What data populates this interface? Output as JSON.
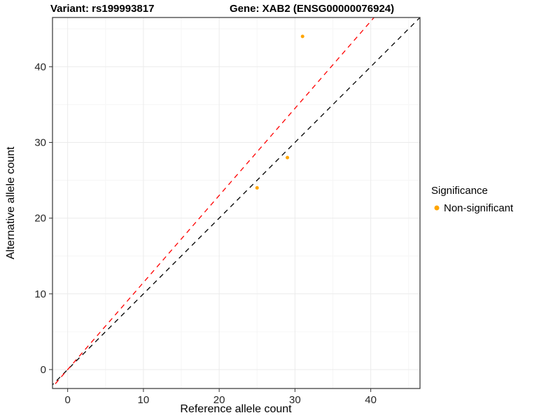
{
  "titles": {
    "variant": "Variant: rs199993817",
    "gene": "Gene: XAB2 (ENSG00000076924)"
  },
  "chart_data": {
    "type": "scatter",
    "title": "Variant: rs199993817 — Gene: XAB2 (ENSG00000076924)",
    "xlabel": "Reference allele count",
    "ylabel": "Alternative allele count",
    "xlim": [
      -2,
      46.5
    ],
    "ylim": [
      -2.5,
      46.5
    ],
    "x_ticks": [
      0,
      10,
      20,
      30,
      40
    ],
    "y_ticks": [
      0,
      10,
      20,
      30,
      40
    ],
    "minor_ticks": [
      5,
      15,
      25,
      35,
      45
    ],
    "grid": true,
    "point_color": "#FFA500",
    "point_radius": 2.5,
    "points": [
      {
        "x": 25,
        "y": 24,
        "significance": "Non-significant"
      },
      {
        "x": 29,
        "y": 28,
        "significance": "Non-significant"
      },
      {
        "x": 31,
        "y": 44,
        "significance": "Non-significant"
      }
    ],
    "lines": [
      {
        "name": "identity",
        "slope": 1,
        "intercept": 0,
        "color": "#000000",
        "style": "dashed"
      },
      {
        "name": "expected-ratio",
        "slope": 1.15,
        "intercept": 0,
        "color": "#FF0000",
        "style": "dashed"
      }
    ],
    "legend": {
      "position": "right",
      "title": "Significance",
      "entries": [
        {
          "label": "Non-significant",
          "color": "#FFA500"
        }
      ]
    }
  }
}
